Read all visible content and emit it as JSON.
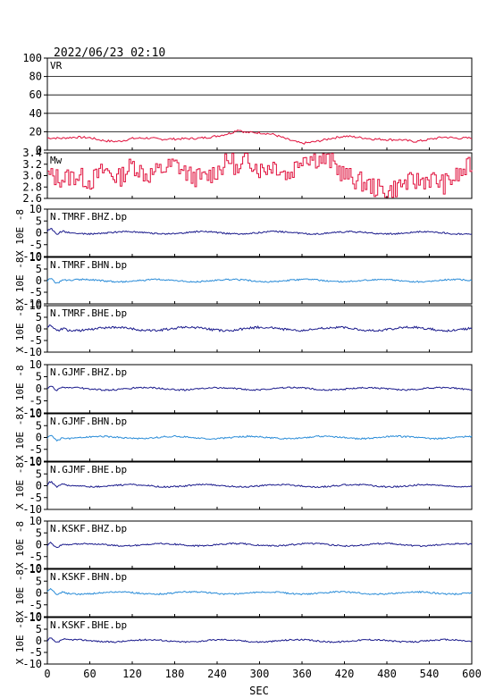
{
  "header": {
    "datetime": "2022/06/23  02:10"
  },
  "xaxis": {
    "label": "SEC",
    "range": [
      0,
      600
    ],
    "ticks": [
      "0",
      "60",
      "120",
      "180",
      "240",
      "300",
      "360",
      "420",
      "480",
      "540",
      "600"
    ]
  },
  "colors": {
    "vr": "#e0103c",
    "mw": "#e0103c",
    "dark_trace": "#1a1a8c",
    "light_trace": "#2a8cd8",
    "axis": "#000000"
  },
  "chart_data": [
    {
      "type": "line",
      "label": "VR",
      "ylim": [
        0,
        100
      ],
      "yticks": [
        "0",
        "20",
        "40",
        "60",
        "80",
        "100"
      ],
      "grid": true,
      "x": [
        0,
        20,
        40,
        60,
        80,
        100,
        120,
        140,
        160,
        180,
        200,
        220,
        240,
        260,
        270,
        280,
        300,
        320,
        340,
        360,
        380,
        400,
        420,
        440,
        460,
        480,
        500,
        520,
        540,
        560,
        580,
        600
      ],
      "values": [
        12,
        11,
        13,
        14,
        12,
        11,
        13,
        12,
        10,
        11,
        13,
        15,
        17,
        19,
        22,
        18,
        17,
        16,
        12,
        9,
        11,
        13,
        14,
        12,
        11,
        12,
        13,
        11,
        12,
        13,
        11,
        12
      ]
    },
    {
      "type": "line",
      "label": "Mw",
      "ylim": [
        2.6,
        3.4
      ],
      "yticks": [
        "2.6",
        "2.8",
        "3.0",
        "3.2",
        "3.4"
      ],
      "x": [
        0,
        20,
        40,
        60,
        80,
        100,
        120,
        140,
        160,
        180,
        200,
        220,
        240,
        260,
        270,
        280,
        300,
        320,
        340,
        360,
        380,
        400,
        420,
        440,
        460,
        480,
        500,
        520,
        540,
        560,
        580,
        600
      ],
      "values": [
        3.0,
        2.95,
        3.0,
        2.9,
        3.1,
        2.95,
        3.2,
        3.0,
        3.1,
        3.2,
        3.0,
        2.95,
        3.1,
        3.3,
        3.0,
        3.35,
        3.1,
        3.2,
        3.0,
        3.35,
        3.3,
        3.25,
        3.0,
        2.9,
        2.8,
        2.7,
        2.85,
        2.9,
        2.95,
        2.85,
        3.0,
        3.2
      ]
    },
    {
      "type": "line",
      "label": "N.TMRF.BHZ.bp",
      "ylim": [
        -10,
        10
      ],
      "yticks": [
        "-10",
        "-5",
        "0",
        "5",
        "10"
      ],
      "ylabel": "X 10E -8",
      "series_color": "dark",
      "x": [
        0,
        100,
        200,
        300,
        400,
        500,
        600
      ],
      "values": [
        0,
        0,
        0,
        0,
        0,
        0,
        0
      ]
    },
    {
      "type": "line",
      "label": "N.TMRF.BHN.bp",
      "ylim": [
        -10,
        10
      ],
      "yticks": [
        "-10",
        "-5",
        "0",
        "5",
        "10"
      ],
      "ylabel": "X 10E -8",
      "series_color": "light",
      "x": [
        0,
        100,
        200,
        300,
        400,
        500,
        600
      ],
      "values": [
        0,
        0,
        0,
        0,
        0,
        0,
        0
      ]
    },
    {
      "type": "line",
      "label": "N.TMRF.BHE.bp",
      "ylim": [
        -10,
        10
      ],
      "yticks": [
        "-10",
        "-5",
        "0",
        "5",
        "10"
      ],
      "ylabel": "X 10E -8",
      "series_color": "dark",
      "x": [
        0,
        100,
        200,
        300,
        400,
        500,
        600
      ],
      "values": [
        0,
        0,
        0,
        0,
        0,
        0,
        0
      ]
    },
    {
      "type": "line",
      "label": "N.GJMF.BHZ.bp",
      "ylim": [
        -10,
        10
      ],
      "yticks": [
        "-10",
        "-5",
        "0",
        "5",
        "10"
      ],
      "ylabel": "X 10E -8",
      "series_color": "dark",
      "x": [
        0,
        100,
        200,
        300,
        400,
        500,
        600
      ],
      "values": [
        0,
        0,
        0,
        0,
        0,
        0,
        0
      ]
    },
    {
      "type": "line",
      "label": "N.GJMF.BHN.bp",
      "ylim": [
        -10,
        10
      ],
      "yticks": [
        "-10",
        "-5",
        "0",
        "5",
        "10"
      ],
      "ylabel": "X 10E -8",
      "series_color": "light",
      "x": [
        0,
        100,
        200,
        300,
        400,
        500,
        600
      ],
      "values": [
        0,
        0,
        0,
        0,
        0,
        0,
        0
      ]
    },
    {
      "type": "line",
      "label": "N.GJMF.BHE.bp",
      "ylim": [
        -10,
        10
      ],
      "yticks": [
        "-10",
        "-5",
        "0",
        "5",
        "10"
      ],
      "ylabel": "X 10E -8",
      "series_color": "dark",
      "x": [
        0,
        100,
        200,
        300,
        400,
        500,
        600
      ],
      "values": [
        0,
        0,
        0,
        0,
        0,
        0,
        0
      ]
    },
    {
      "type": "line",
      "label": "N.KSKF.BHZ.bp",
      "ylim": [
        -10,
        10
      ],
      "yticks": [
        "-10",
        "-5",
        "0",
        "5",
        "10"
      ],
      "ylabel": "X 10E -8",
      "series_color": "dark",
      "x": [
        0,
        100,
        200,
        300,
        400,
        500,
        600
      ],
      "values": [
        0,
        0,
        0,
        0,
        0,
        0,
        0
      ]
    },
    {
      "type": "line",
      "label": "N.KSKF.BHN.bp",
      "ylim": [
        -10,
        10
      ],
      "yticks": [
        "-10",
        "-5",
        "0",
        "5",
        "10"
      ],
      "ylabel": "X 10E -8",
      "series_color": "light",
      "x": [
        0,
        100,
        200,
        300,
        400,
        500,
        600
      ],
      "values": [
        0,
        0,
        0,
        0,
        0,
        0,
        0
      ]
    },
    {
      "type": "line",
      "label": "N.KSKF.BHE.bp",
      "ylim": [
        -10,
        10
      ],
      "yticks": [
        "-10",
        "-5",
        "0",
        "5",
        "10"
      ],
      "ylabel": "X 10E -8",
      "series_color": "dark",
      "x": [
        0,
        100,
        200,
        300,
        400,
        500,
        600
      ],
      "values": [
        0,
        0,
        0,
        0,
        0,
        0,
        0
      ]
    }
  ]
}
